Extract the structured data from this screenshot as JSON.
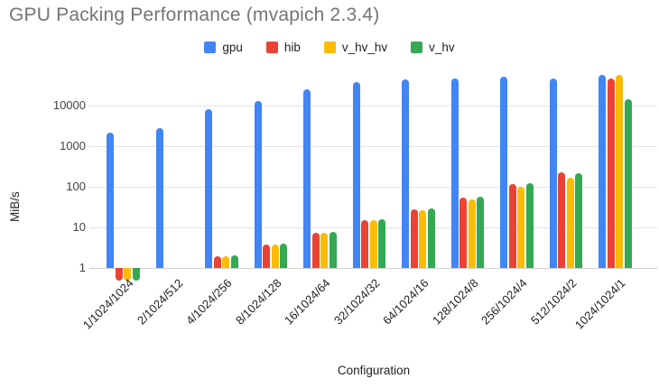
{
  "title": "GPU Packing Performance (mvapich 2.3.4)",
  "chart_data": {
    "type": "bar",
    "title": "GPU Packing Performance (mvapich 2.3.4)",
    "xlabel": "Configuration",
    "ylabel": "MiB/s",
    "y_scale": "log",
    "y_ticks": [
      1,
      10,
      100,
      1000,
      10000
    ],
    "ylim": [
      0.4,
      70000
    ],
    "grid": true,
    "legend_position": "top",
    "categories": [
      "1/1024/1024",
      "2/1024/512",
      "4/1024/256",
      "8/1024/128",
      "16/1024/64",
      "32/1024/32",
      "64/1024/16",
      "128/1024/8",
      "256/1024/4",
      "512/1024/2",
      "1024/1024/1"
    ],
    "series": [
      {
        "name": "gpu",
        "color": "#4285F4",
        "values": [
          2200,
          2800,
          8300,
          13000,
          25000,
          37000,
          45000,
          46000,
          52000,
          47000,
          56000
        ]
      },
      {
        "name": "hib",
        "color": "#EA4335",
        "values": [
          0.5,
          null,
          1.9,
          3.8,
          7.5,
          15,
          28,
          55,
          115,
          230,
          46000
        ]
      },
      {
        "name": "v_hv_hv",
        "color": "#FBBC04",
        "values": [
          0.5,
          null,
          1.9,
          3.8,
          7.5,
          15,
          27,
          50,
          98,
          165,
          58000
        ]
      },
      {
        "name": "v_hv",
        "color": "#34A853",
        "values": [
          0.5,
          null,
          2.0,
          4.0,
          7.8,
          16,
          29,
          57,
          120,
          215,
          14500
        ]
      }
    ]
  }
}
